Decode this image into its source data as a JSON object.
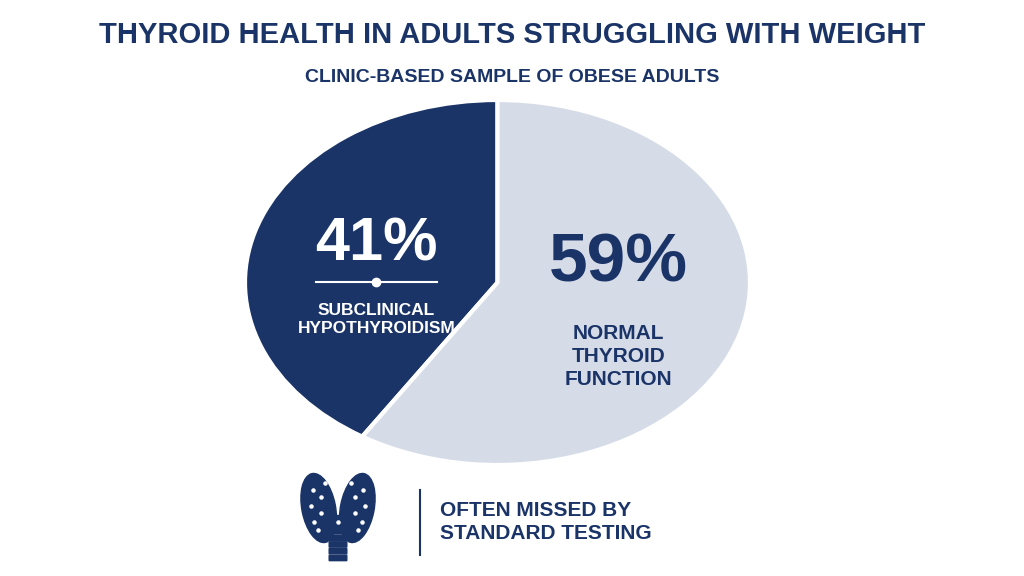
{
  "chart_data": {
    "type": "pie",
    "title": "THYROID HEALTH IN ADULTS STRUGGLING WITH WEIGHT",
    "subtitle": "CLINIC-BASED SAMPLE OF OBESE ADULTS",
    "categories": [
      "SUBCLINICAL HYPOTHYROIDISM",
      "NORMAL THYROID FUNCTION"
    ],
    "values": [
      41,
      59
    ],
    "value_labels": [
      "41%",
      "59%"
    ],
    "colors": [
      "#1b3468",
      "#d6dce7"
    ],
    "data_labels": true,
    "annotation": "OFTEN MISSED BY STANDARD TESTING"
  }
}
